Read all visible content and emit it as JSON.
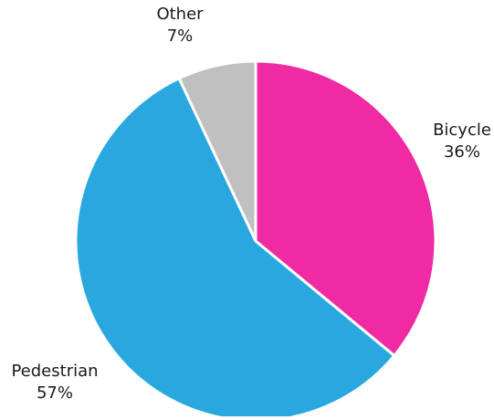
{
  "chart_data": {
    "type": "pie",
    "title": "",
    "start_angle_deg": 0,
    "direction": "clockwise",
    "slices": [
      {
        "label": "Bicycle",
        "value": 36,
        "value_label": "36%",
        "color": "#f02aa3"
      },
      {
        "label": "Pedestrian",
        "value": 57,
        "value_label": "57%",
        "color": "#29a8e0"
      },
      {
        "label": "Other",
        "value": 7,
        "value_label": "7%",
        "color": "#c0c0c0"
      }
    ],
    "separator_color": "#ffffff"
  }
}
